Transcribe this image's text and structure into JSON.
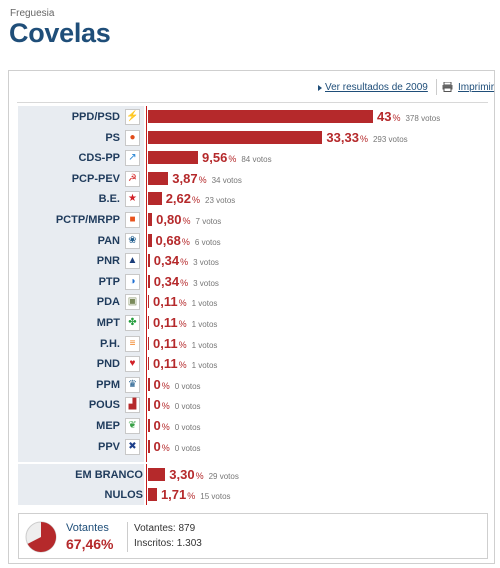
{
  "header": {
    "kicker": "Freguesia",
    "title": "Covelas"
  },
  "toolbar": {
    "results_2009_label": "Ver resultados de 2009",
    "print_label": "Imprimir"
  },
  "pct_sign": "%",
  "votes_suffix": "votos",
  "parties": [
    {
      "name": "PPD/PSD",
      "pct": 43,
      "pct_text": "43",
      "votes": 378,
      "logo_icon": "ppd-psd-arrows-icon",
      "logo_color": "#f07f1d",
      "glyph": "⚡"
    },
    {
      "name": "PS",
      "pct": 33.33,
      "pct_text": "33,33",
      "votes": 293,
      "logo_icon": "ps-fist-rose-icon",
      "logo_color": "#e24d1a",
      "glyph": "●"
    },
    {
      "name": "CDS-PP",
      "pct": 9.56,
      "pct_text": "9,56",
      "votes": 84,
      "logo_icon": "cds-pp-arrow-icon",
      "logo_color": "#1c7fd1",
      "glyph": "↗"
    },
    {
      "name": "PCP-PEV",
      "pct": 3.87,
      "pct_text": "3,87",
      "votes": 34,
      "logo_icon": "pcp-pev-hammer-sickle-icon",
      "logo_color": "#d62f2f",
      "glyph": "☭"
    },
    {
      "name": "B.E.",
      "pct": 2.62,
      "pct_text": "2,62",
      "votes": 23,
      "logo_icon": "be-star-icon",
      "logo_color": "#d11f26",
      "glyph": "★"
    },
    {
      "name": "PCTP/MRPP",
      "pct": 0.8,
      "pct_text": "0,80",
      "votes": 7,
      "logo_icon": "pctp-mrpp-emblem-icon",
      "logo_color": "#e8531d",
      "glyph": "■"
    },
    {
      "name": "PAN",
      "pct": 0.68,
      "pct_text": "0,68",
      "votes": 6,
      "logo_icon": "pan-animal-icon",
      "logo_color": "#1d5a8b",
      "glyph": "❀"
    },
    {
      "name": "PNR",
      "pct": 0.34,
      "pct_text": "0,34",
      "votes": 3,
      "logo_icon": "pnr-flame-icon",
      "logo_color": "#1b3e7a",
      "glyph": "▲"
    },
    {
      "name": "PTP",
      "pct": 0.34,
      "pct_text": "0,34",
      "votes": 3,
      "logo_icon": "ptp-swirl-icon",
      "logo_color": "#1f6fd1",
      "glyph": "◑"
    },
    {
      "name": "PDA",
      "pct": 0.11,
      "pct_text": "0,11",
      "votes": 1,
      "logo_icon": "pda-map-icon",
      "logo_color": "#7a8a5a",
      "glyph": "▣"
    },
    {
      "name": "MPT",
      "pct": 0.11,
      "pct_text": "0,11",
      "votes": 1,
      "logo_icon": "mpt-clover-icon",
      "logo_color": "#1f9c3a",
      "glyph": "✤"
    },
    {
      "name": "P.H.",
      "pct": 0.11,
      "pct_text": "0,11",
      "votes": 1,
      "logo_icon": "ph-humanist-icon",
      "logo_color": "#f07f1d",
      "glyph": "≡"
    },
    {
      "name": "PND",
      "pct": 0.11,
      "pct_text": "0,11",
      "votes": 1,
      "logo_icon": "pnd-heart-icon",
      "logo_color": "#d11f26",
      "glyph": "♥"
    },
    {
      "name": "PPM",
      "pct": 0,
      "pct_text": "0",
      "votes": 0,
      "logo_icon": "ppm-crown-icon",
      "logo_color": "#1d5a8b",
      "glyph": "♛"
    },
    {
      "name": "POUS",
      "pct": 0,
      "pct_text": "0",
      "votes": 0,
      "logo_icon": "pous-factory-icon",
      "logo_color": "#b5292b",
      "glyph": "▟"
    },
    {
      "name": "MEP",
      "pct": 0,
      "pct_text": "0",
      "votes": 0,
      "logo_icon": "mep-leaf-icon",
      "logo_color": "#3aa148",
      "glyph": "❦"
    },
    {
      "name": "PPV",
      "pct": 0,
      "pct_text": "0",
      "votes": 0,
      "logo_icon": "ppv-cross-icon",
      "logo_color": "#1d3f8b",
      "glyph": "✖"
    }
  ],
  "others": [
    {
      "name": "EM BRANCO",
      "pct": 3.3,
      "pct_text": "3,30",
      "votes": 29
    },
    {
      "name": "NULOS",
      "pct": 1.71,
      "pct_text": "1,71",
      "votes": 15
    }
  ],
  "summary": {
    "turnout_label": "Votantes",
    "turnout_pct": 67.46,
    "turnout_text": "67,46%",
    "voters_label": "Votantes:",
    "voters_value": "879",
    "registered_label": "Inscritos:",
    "registered_value": "1.303"
  },
  "colors": {
    "bar": "#b5292b",
    "title": "#1f4e79",
    "label_bg": "#e8ecf1"
  },
  "chart_data": {
    "type": "bar",
    "orientation": "horizontal",
    "categories": [
      "PPD/PSD",
      "PS",
      "CDS-PP",
      "PCP-PEV",
      "B.E.",
      "PCTP/MRPP",
      "PAN",
      "PNR",
      "PTP",
      "PDA",
      "MPT",
      "P.H.",
      "PND",
      "PPM",
      "POUS",
      "MEP",
      "PPV",
      "EM BRANCO",
      "NULOS"
    ],
    "values": [
      43,
      33.33,
      9.56,
      3.87,
      2.62,
      0.8,
      0.68,
      0.34,
      0.34,
      0.11,
      0.11,
      0.11,
      0.11,
      0,
      0,
      0,
      0,
      3.3,
      1.71
    ],
    "votes": [
      378,
      293,
      84,
      34,
      23,
      7,
      6,
      3,
      3,
      1,
      1,
      1,
      1,
      0,
      0,
      0,
      0,
      29,
      15
    ],
    "title": "Covelas",
    "xlabel": "",
    "ylabel": "",
    "xlim": [
      0,
      50
    ]
  }
}
